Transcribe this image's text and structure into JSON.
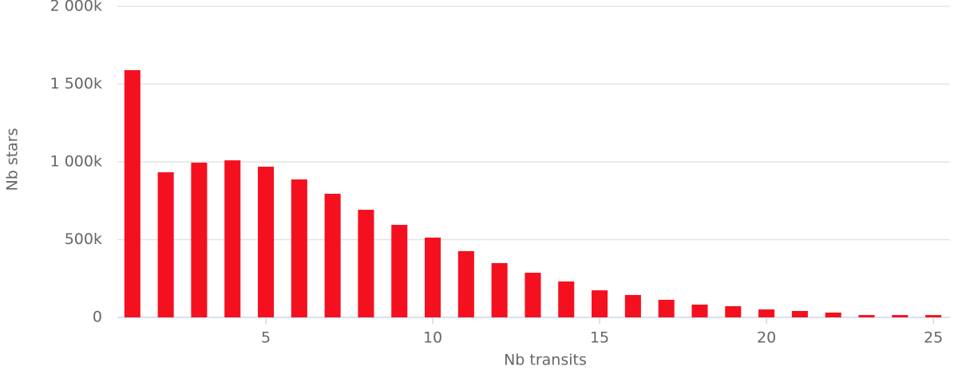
{
  "chart_data": {
    "type": "bar",
    "x_label": "Nb transits",
    "y_label": "Nb stars",
    "x": [
      1,
      2,
      3,
      4,
      5,
      6,
      7,
      8,
      9,
      10,
      11,
      12,
      13,
      14,
      15,
      16,
      17,
      18,
      19,
      20,
      21,
      22,
      23,
      24,
      25
    ],
    "values": [
      1590000,
      933000,
      995000,
      1010000,
      969000,
      887000,
      795000,
      692000,
      595000,
      513000,
      426000,
      349000,
      287000,
      231000,
      174000,
      144000,
      113000,
      82000,
      72000,
      51000,
      41000,
      31000,
      15000,
      15000,
      15000
    ],
    "color": "#f5101f",
    "xlim": [
      0.55,
      25.5
    ],
    "xticks": [
      5,
      10,
      15,
      20,
      25
    ],
    "ylim": [
      0,
      2000000
    ],
    "yticks": [
      0,
      {
        "value": 500000,
        "label": "500k"
      },
      {
        "value": 1000000,
        "label": "1 000k"
      },
      {
        "value": 1500000,
        "label": "1 500k"
      },
      {
        "value": 2000000,
        "label": "2 000k"
      }
    ],
    "grid": true
  }
}
